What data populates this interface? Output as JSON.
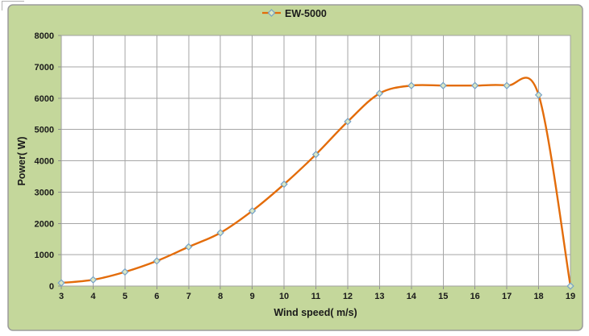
{
  "chart_data": {
    "type": "line",
    "smooth": true,
    "title": "",
    "series": [
      {
        "name": "EW-5000",
        "x": [
          3,
          4,
          5,
          6,
          7,
          8,
          9,
          10,
          11,
          12,
          13,
          14,
          15,
          16,
          17,
          18,
          19
        ],
        "y": [
          100,
          200,
          450,
          800,
          1250,
          1700,
          2400,
          3250,
          4200,
          5250,
          6150,
          6400,
          6400,
          6400,
          6400,
          6100,
          0
        ]
      }
    ],
    "xlabel": "Wind speed( m/s)",
    "ylabel": "Power( W)",
    "xlim": [
      3,
      19
    ],
    "ylim": [
      0,
      8000
    ],
    "x_ticks": [
      3,
      4,
      5,
      6,
      7,
      8,
      9,
      10,
      11,
      12,
      13,
      14,
      15,
      16,
      17,
      18,
      19
    ],
    "y_ticks": [
      0,
      1000,
      2000,
      3000,
      4000,
      5000,
      6000,
      7000,
      8000
    ],
    "grid": true,
    "legend_position": "top-center",
    "colors": {
      "line": "#e36c0a",
      "marker_fill": "#dbe7c3",
      "marker_stroke": "#74a1c8",
      "grid": "#a6a6a6",
      "tick": "#8c8c8c",
      "plot_border": "#a0a0a0",
      "plot_bg": "#ffffff",
      "chart_bg": "#c4d79b",
      "chart_border": "#9b9b9b",
      "text": "#1a1a1a"
    }
  }
}
